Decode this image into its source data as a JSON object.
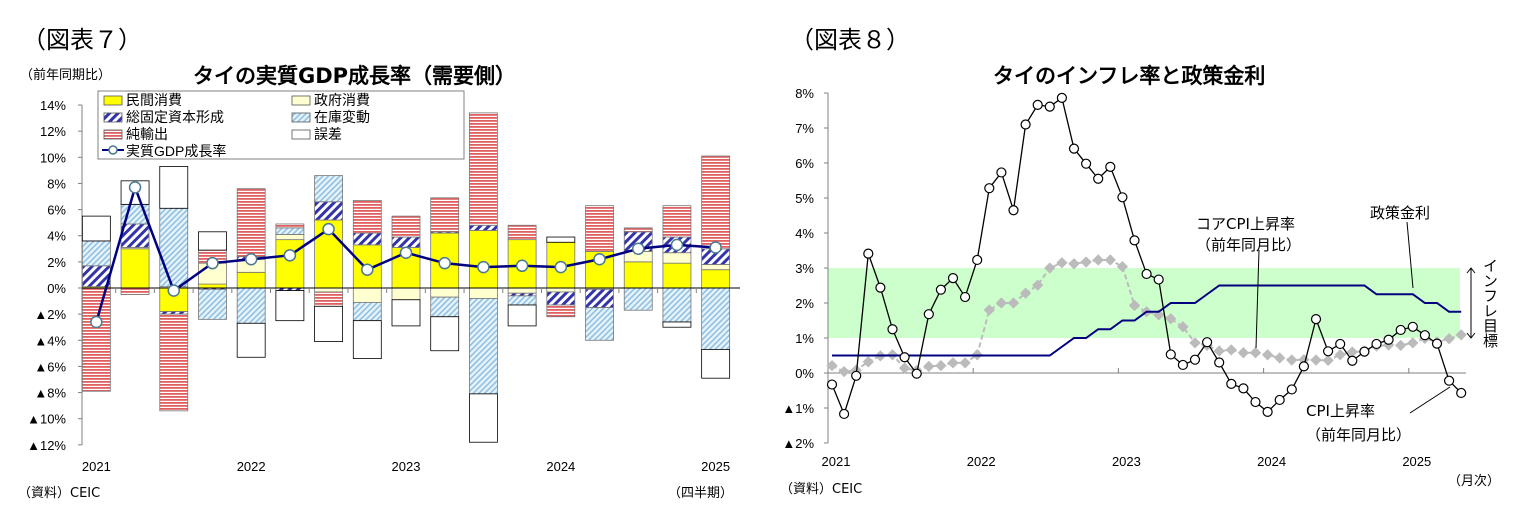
{
  "left": {
    "figure_label": "（図表７）",
    "unit_label": "（前年同期比）",
    "source": "（資料）CEIC",
    "period_label": "（四半期）"
  },
  "right": {
    "figure_label": "（図表８）",
    "source": "（資料）CEIC",
    "period_label": "（月次）",
    "annot_core": [
      "コアCPI上昇率",
      "（前年同月比）"
    ],
    "annot_policy": "政策金利",
    "annot_cpi": [
      "CPI上昇率",
      "（前年同月比）"
    ],
    "annot_target": "インフレ目標"
  },
  "chart_data": [
    {
      "type": "bar",
      "stacked": true,
      "title": "タイの実質GDP成長率（需要側）",
      "ylabel": "（前年同期比）",
      "xlabel": "（四半期）",
      "ylim": [
        -12,
        14
      ],
      "yticks": [
        14,
        12,
        10,
        8,
        6,
        4,
        2,
        0,
        -2,
        -4,
        -6,
        -8,
        -10,
        -12
      ],
      "ytick_labels": [
        "14%",
        "12%",
        "10%",
        "8%",
        "6%",
        "4%",
        "2%",
        "0%",
        "▲2%",
        "▲4%",
        "▲6%",
        "▲8%",
        "▲10%",
        "▲12%"
      ],
      "categories": [
        "2021Q1",
        "2021Q2",
        "2021Q3",
        "2021Q4",
        "2022Q1",
        "2022Q2",
        "2022Q3",
        "2022Q4",
        "2023Q1",
        "2023Q2",
        "2023Q3",
        "2023Q4",
        "2024Q1",
        "2024Q2",
        "2024Q3",
        "2024Q4",
        "2025Q1"
      ],
      "xtick_labels": [
        {
          "index": 0,
          "label": "2021"
        },
        {
          "index": 4,
          "label": "2022"
        },
        {
          "index": 8,
          "label": "2023"
        },
        {
          "index": 12,
          "label": "2024"
        },
        {
          "index": 16,
          "label": "2025"
        }
      ],
      "legend_position": "top-left",
      "series": [
        {
          "name": "民間消費",
          "key": "priv",
          "color": "#ffff00",
          "values": [
            0.1,
            3.0,
            -1.8,
            0.3,
            1.2,
            3.7,
            5.2,
            3.3,
            3.1,
            4.2,
            4.4,
            3.7,
            3.5,
            2.8,
            2.0,
            1.9,
            1.4
          ]
        },
        {
          "name": "政府消費",
          "key": "gov",
          "color": "#ffffd0",
          "values": [
            0.0,
            0.1,
            0.1,
            1.6,
            1.0,
            0.4,
            -0.3,
            -1.1,
            -0.9,
            -0.7,
            -0.8,
            -0.4,
            -0.3,
            -0.1,
            0.8,
            0.8,
            0.4
          ]
        },
        {
          "name": "総固定資本形成",
          "key": "gfcf",
          "color": "#3333aa",
          "values": [
            1.6,
            1.8,
            -0.2,
            -0.1,
            0.2,
            -0.2,
            1.4,
            0.9,
            0.8,
            0.1,
            0.4,
            -0.2,
            -1.0,
            -1.4,
            1.5,
            1.2,
            1.2
          ]
        },
        {
          "name": "在庫変動",
          "key": "inv",
          "color": "#9cc8e8",
          "values": [
            1.9,
            1.5,
            6.0,
            -2.3,
            -2.7,
            0.5,
            2.0,
            -1.4,
            0.0,
            -1.5,
            -7.3,
            -0.7,
            0.0,
            -2.5,
            -1.7,
            -2.6,
            -4.7
          ]
        },
        {
          "name": "純輸出",
          "key": "net",
          "color": "#e06060",
          "values": [
            -7.9,
            -0.5,
            -7.4,
            1.0,
            5.2,
            0.3,
            -1.1,
            2.5,
            1.6,
            2.6,
            8.6,
            1.1,
            -0.9,
            3.5,
            0.3,
            2.4,
            7.1
          ]
        },
        {
          "name": "誤差",
          "key": "err",
          "color": "#ffffff",
          "values": [
            1.9,
            1.8,
            3.2,
            1.4,
            -2.6,
            -2.3,
            -2.7,
            -2.9,
            -2.0,
            -2.6,
            -3.7,
            -1.6,
            0.4,
            0.0,
            0.0,
            -0.4,
            -2.2
          ]
        }
      ],
      "line_series": {
        "name": "実質GDP成長率",
        "color": "#000080",
        "values": [
          -2.6,
          7.7,
          -0.2,
          1.9,
          2.2,
          2.5,
          4.5,
          1.4,
          2.7,
          1.9,
          1.6,
          1.7,
          1.6,
          2.2,
          3.0,
          3.3,
          3.1
        ]
      }
    },
    {
      "type": "line",
      "title": "タイのインフレ率と政策金利",
      "xlabel": "（月次）",
      "ylim": [
        -2,
        8
      ],
      "yticks": [
        8,
        7,
        6,
        5,
        4,
        3,
        2,
        1,
        0,
        -1,
        -2
      ],
      "ytick_labels": [
        "8%",
        "7%",
        "6%",
        "5%",
        "4%",
        "3%",
        "2%",
        "1%",
        "0%",
        "▲1%",
        "▲2%"
      ],
      "x_start": "2021-01",
      "x_end": "2025-05",
      "xtick_labels": [
        {
          "index": 0,
          "label": "2021"
        },
        {
          "index": 12,
          "label": "2022"
        },
        {
          "index": 24,
          "label": "2023"
        },
        {
          "index": 36,
          "label": "2024"
        },
        {
          "index": 48,
          "label": "2025"
        }
      ],
      "target_band": {
        "name": "インフレ目標",
        "range": [
          1,
          3
        ],
        "color": "#ccffcc"
      },
      "series": [
        {
          "name": "CPI上昇率（前年同月比）",
          "color": "#000000",
          "marker": "circle",
          "values": [
            -0.33,
            -1.17,
            -0.08,
            3.41,
            2.44,
            1.25,
            0.45,
            -0.02,
            1.68,
            2.38,
            2.71,
            2.17,
            3.23,
            5.28,
            5.73,
            4.65,
            7.1,
            7.66,
            7.61,
            7.86,
            6.41,
            5.98,
            5.55,
            5.89,
            5.02,
            3.79,
            2.83,
            2.67,
            0.53,
            0.23,
            0.38,
            0.88,
            0.3,
            -0.31,
            -0.44,
            -0.83,
            -1.11,
            -0.77,
            -0.47,
            0.19,
            1.54,
            0.62,
            0.83,
            0.35,
            0.61,
            0.83,
            0.95,
            1.23,
            1.32,
            1.08,
            0.84,
            -0.22,
            -0.57
          ]
        },
        {
          "name": "コアCPI上昇率（前年同月比）",
          "color": "#bbbbbb",
          "marker": "diamond",
          "values": [
            0.21,
            0.04,
            0.08,
            0.32,
            0.49,
            0.52,
            0.14,
            0.07,
            0.19,
            0.21,
            0.29,
            0.29,
            0.52,
            1.8,
            2.0,
            2.0,
            2.28,
            2.51,
            3.0,
            3.15,
            3.12,
            3.17,
            3.23,
            3.23,
            3.04,
            1.93,
            1.75,
            1.66,
            1.55,
            1.32,
            0.86,
            0.79,
            0.63,
            0.66,
            0.58,
            0.58,
            0.52,
            0.43,
            0.37,
            0.38,
            0.37,
            0.36,
            0.52,
            0.6,
            0.62,
            0.77,
            0.8,
            0.79,
            0.86,
            0.99,
            0.89,
            0.98,
            1.09
          ]
        },
        {
          "name": "政策金利",
          "color": "#000080",
          "marker": "none",
          "values": [
            0.5,
            0.5,
            0.5,
            0.5,
            0.5,
            0.5,
            0.5,
            0.5,
            0.5,
            0.5,
            0.5,
            0.5,
            0.5,
            0.5,
            0.5,
            0.5,
            0.5,
            0.5,
            0.5,
            0.75,
            1.0,
            1.0,
            1.25,
            1.25,
            1.5,
            1.5,
            1.75,
            1.75,
            2.0,
            2.0,
            2.0,
            2.25,
            2.5,
            2.5,
            2.5,
            2.5,
            2.5,
            2.5,
            2.5,
            2.5,
            2.5,
            2.5,
            2.5,
            2.5,
            2.5,
            2.25,
            2.25,
            2.25,
            2.25,
            2.0,
            2.0,
            1.75,
            1.75
          ]
        }
      ]
    }
  ]
}
